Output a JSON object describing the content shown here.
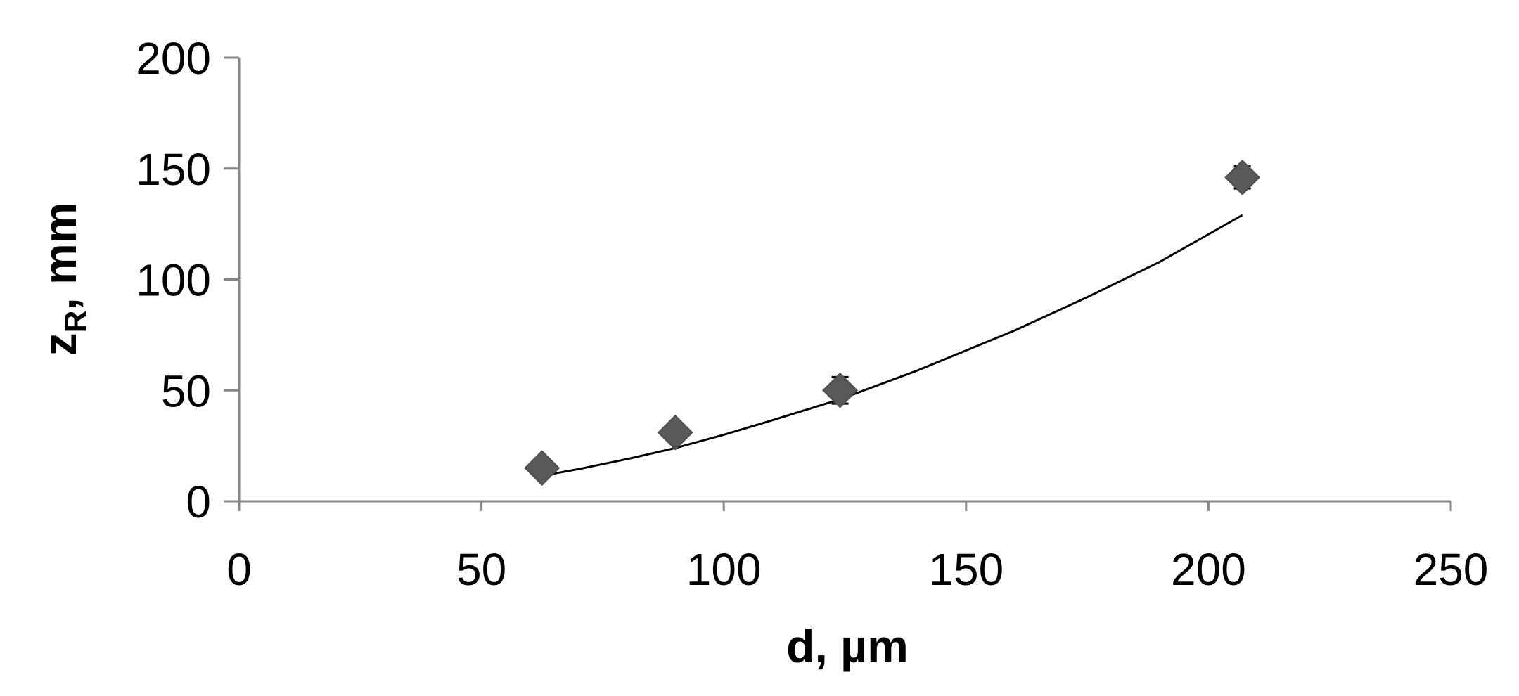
{
  "chart_data": {
    "type": "scatter",
    "xlabel": "d, µm",
    "ylabel": {
      "main": "z",
      "sub": "R",
      "unit": ", mm"
    },
    "xlim": [
      0,
      250
    ],
    "ylim": [
      0,
      200
    ],
    "x_ticks": [
      0,
      50,
      100,
      150,
      200,
      250
    ],
    "y_ticks": [
      0,
      50,
      100,
      150,
      200
    ],
    "grid": false,
    "series": [
      {
        "marker": "diamond",
        "color": "#595959",
        "points": [
          {
            "x": 62.5,
            "y": 15,
            "err": 0
          },
          {
            "x": 90,
            "y": 31,
            "err": 0
          },
          {
            "x": 124,
            "y": 50,
            "err": 6
          },
          {
            "x": 207,
            "y": 146,
            "err": 5
          }
        ]
      }
    ],
    "trendline": {
      "type": "power",
      "color": "#000000",
      "x_range": [
        62.5,
        207
      ],
      "points": [
        {
          "x": 62.5,
          "y": 11.5
        },
        {
          "x": 70,
          "y": 14.5
        },
        {
          "x": 80,
          "y": 19
        },
        {
          "x": 90,
          "y": 24
        },
        {
          "x": 100,
          "y": 30
        },
        {
          "x": 110,
          "y": 36.5
        },
        {
          "x": 124,
          "y": 46
        },
        {
          "x": 140,
          "y": 59
        },
        {
          "x": 150,
          "y": 68
        },
        {
          "x": 160,
          "y": 77
        },
        {
          "x": 175,
          "y": 92
        },
        {
          "x": 190,
          "y": 108
        },
        {
          "x": 207,
          "y": 129
        }
      ]
    }
  }
}
